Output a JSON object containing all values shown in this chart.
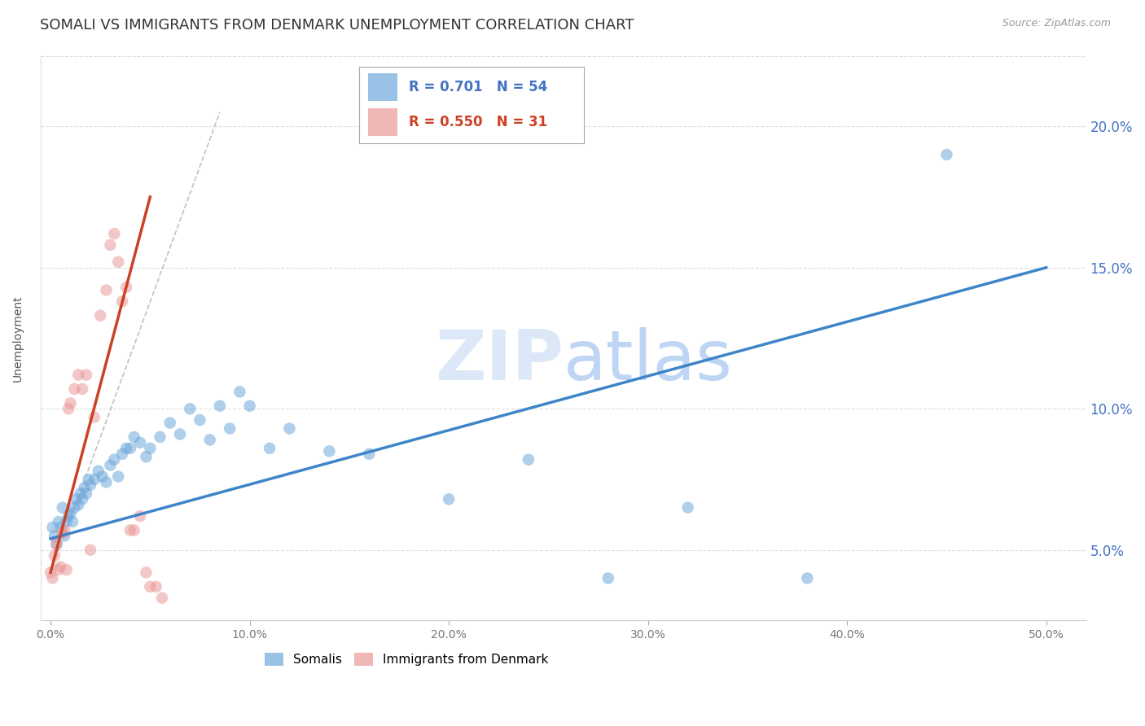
{
  "title": "SOMALI VS IMMIGRANTS FROM DENMARK UNEMPLOYMENT CORRELATION CHART",
  "source": "Source: ZipAtlas.com",
  "ylabel": "Unemployment",
  "xlabel_ticks": [
    "0.0%",
    "10.0%",
    "20.0%",
    "30.0%",
    "40.0%",
    "50.0%"
  ],
  "xlabel_vals": [
    0.0,
    0.1,
    0.2,
    0.3,
    0.4,
    0.5
  ],
  "ylabel_ticks": [
    "5.0%",
    "10.0%",
    "15.0%",
    "20.0%"
  ],
  "ylabel_vals": [
    0.05,
    0.1,
    0.15,
    0.2
  ],
  "ylim": [
    0.025,
    0.225
  ],
  "xlim": [
    -0.005,
    0.52
  ],
  "legend1_label": "Somalis",
  "legend2_label": "Immigrants from Denmark",
  "R1": "0.701",
  "N1": "54",
  "R2": "0.550",
  "N2": "31",
  "somali_color": "#6fa8dc",
  "denmark_color": "#ea9999",
  "somali_line_color": "#3d85c8",
  "denmark_line_color": "#cc4125",
  "diagonal_color": "#bbbbbb",
  "watermark_color": "#c9daf8",
  "title_fontsize": 13,
  "source_fontsize": 9,
  "axis_label_fontsize": 10,
  "tick_fontsize": 10,
  "somali_x": [
    0.001,
    0.002,
    0.003,
    0.004,
    0.005,
    0.006,
    0.007,
    0.008,
    0.009,
    0.01,
    0.011,
    0.012,
    0.013,
    0.014,
    0.015,
    0.016,
    0.017,
    0.018,
    0.019,
    0.02,
    0.022,
    0.024,
    0.026,
    0.028,
    0.03,
    0.032,
    0.034,
    0.036,
    0.038,
    0.04,
    0.042,
    0.045,
    0.048,
    0.05,
    0.055,
    0.06,
    0.065,
    0.07,
    0.075,
    0.08,
    0.085,
    0.09,
    0.095,
    0.1,
    0.11,
    0.12,
    0.14,
    0.16,
    0.2,
    0.24,
    0.28,
    0.32,
    0.38,
    0.45
  ],
  "somali_y": [
    0.058,
    0.055,
    0.052,
    0.06,
    0.058,
    0.065,
    0.055,
    0.06,
    0.062,
    0.063,
    0.06,
    0.065,
    0.068,
    0.066,
    0.07,
    0.068,
    0.072,
    0.07,
    0.075,
    0.073,
    0.075,
    0.078,
    0.076,
    0.074,
    0.08,
    0.082,
    0.076,
    0.084,
    0.086,
    0.086,
    0.09,
    0.088,
    0.083,
    0.086,
    0.09,
    0.095,
    0.091,
    0.1,
    0.096,
    0.089,
    0.101,
    0.093,
    0.106,
    0.101,
    0.086,
    0.093,
    0.085,
    0.084,
    0.068,
    0.082,
    0.04,
    0.065,
    0.04,
    0.19
  ],
  "denmark_x": [
    0.0,
    0.001,
    0.002,
    0.003,
    0.004,
    0.005,
    0.006,
    0.007,
    0.008,
    0.009,
    0.01,
    0.012,
    0.014,
    0.016,
    0.018,
    0.02,
    0.022,
    0.025,
    0.028,
    0.03,
    0.032,
    0.034,
    0.036,
    0.038,
    0.04,
    0.042,
    0.045,
    0.048,
    0.05,
    0.053,
    0.056
  ],
  "denmark_y": [
    0.042,
    0.04,
    0.048,
    0.052,
    0.043,
    0.044,
    0.056,
    0.057,
    0.043,
    0.1,
    0.102,
    0.107,
    0.112,
    0.107,
    0.112,
    0.05,
    0.097,
    0.133,
    0.142,
    0.158,
    0.162,
    0.152,
    0.138,
    0.143,
    0.057,
    0.057,
    0.062,
    0.042,
    0.037,
    0.037,
    0.033
  ],
  "blue_line_x": [
    0.0,
    0.5
  ],
  "blue_line_y": [
    0.054,
    0.15
  ],
  "pink_line_x": [
    0.0,
    0.05
  ],
  "pink_line_y": [
    0.042,
    0.175
  ],
  "diag_line_x": [
    0.0,
    0.085
  ],
  "diag_line_y": [
    0.042,
    0.205
  ]
}
